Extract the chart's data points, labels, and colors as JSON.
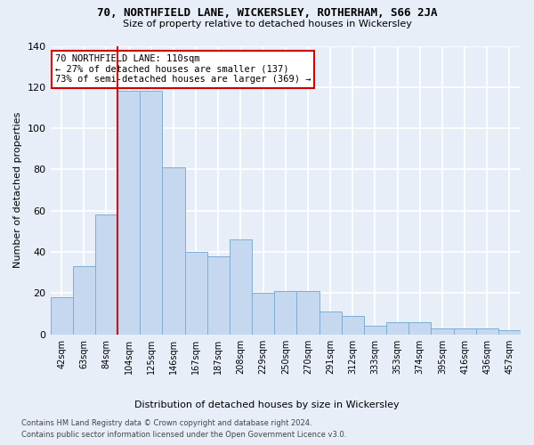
{
  "title": "70, NORTHFIELD LANE, WICKERSLEY, ROTHERHAM, S66 2JA",
  "subtitle": "Size of property relative to detached houses in Wickersley",
  "xlabel": "Distribution of detached houses by size in Wickersley",
  "ylabel": "Number of detached properties",
  "footnote1": "Contains HM Land Registry data © Crown copyright and database right 2024.",
  "footnote2": "Contains public sector information licensed under the Open Government Licence v3.0.",
  "categories": [
    "42sqm",
    "63sqm",
    "84sqm",
    "104sqm",
    "125sqm",
    "146sqm",
    "167sqm",
    "187sqm",
    "208sqm",
    "229sqm",
    "250sqm",
    "270sqm",
    "291sqm",
    "312sqm",
    "333sqm",
    "353sqm",
    "374sqm",
    "395sqm",
    "416sqm",
    "436sqm",
    "457sqm"
  ],
  "values": [
    18,
    33,
    58,
    118,
    118,
    81,
    40,
    38,
    46,
    20,
    21,
    21,
    11,
    9,
    4,
    6,
    6,
    3,
    3,
    3,
    2
  ],
  "bar_color": "#c5d8f0",
  "bar_edge_color": "#7bafd4",
  "background_color": "#e8eef8",
  "grid_color": "#ffffff",
  "annotation_text": "70 NORTHFIELD LANE: 110sqm\n← 27% of detached houses are smaller (137)\n73% of semi-detached houses are larger (369) →",
  "annotation_box_color": "#ffffff",
  "annotation_box_edge_color": "#cc0000",
  "vline_color": "#cc0000",
  "vline_x_index": 3,
  "ylim": [
    0,
    140
  ],
  "yticks": [
    0,
    20,
    40,
    60,
    80,
    100,
    120,
    140
  ]
}
